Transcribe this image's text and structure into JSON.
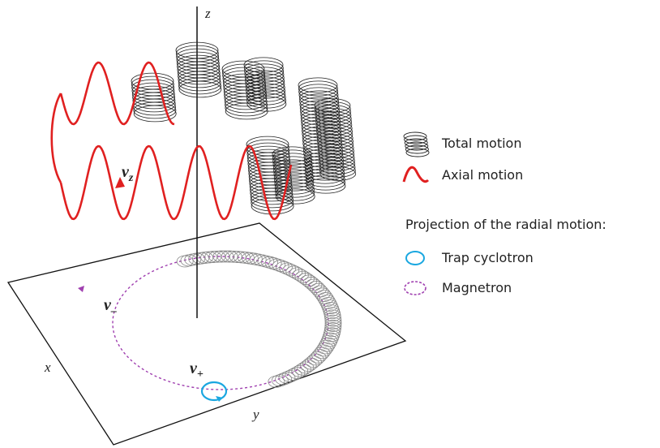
{
  "axes": {
    "z": "z",
    "x": "x",
    "y": "y"
  },
  "frequencies": {
    "axial": {
      "symbol": "ν",
      "subscript": "z"
    },
    "magnetron": {
      "symbol": "ν",
      "subscript": "–"
    },
    "cyclotron": {
      "symbol": "ν",
      "subscript": "+"
    }
  },
  "legend": {
    "total_motion": "Total motion",
    "axial_motion": "Axial motion",
    "projection_heading": "Projection of the radial motion:",
    "trap_cyclotron": "Trap cyclotron",
    "magnetron": "Magnetron"
  }
}
